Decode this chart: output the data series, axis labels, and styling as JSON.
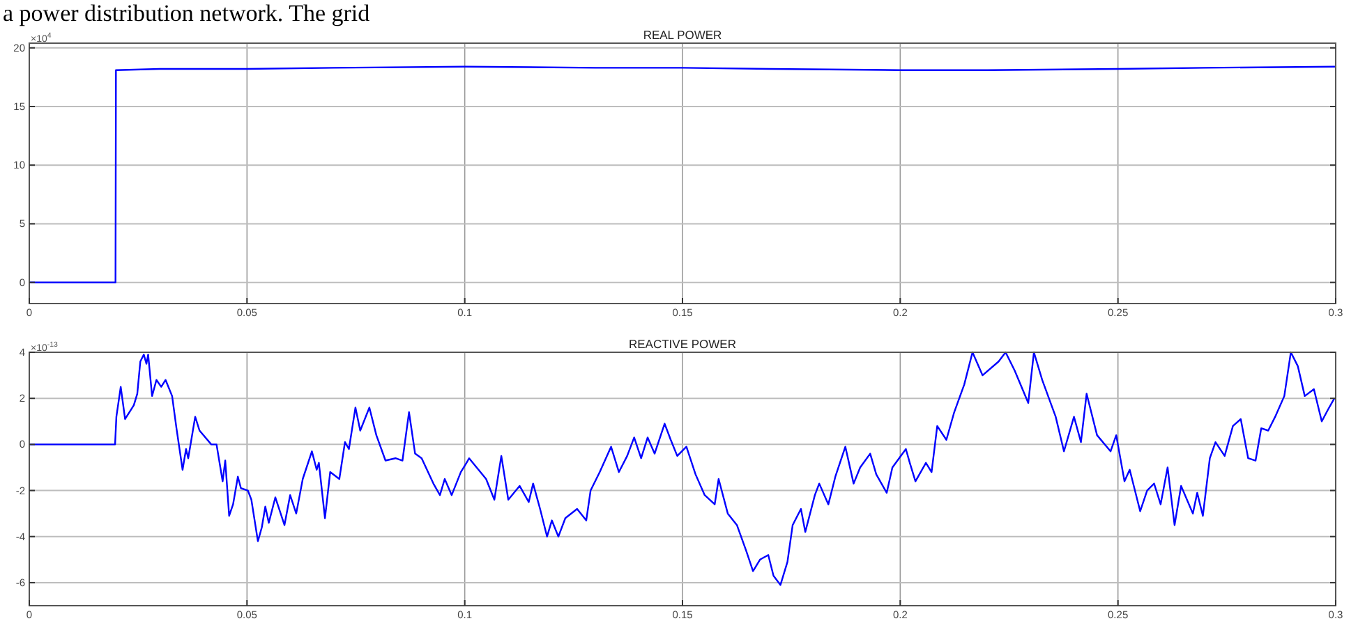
{
  "chart_data": [
    {
      "type": "line",
      "title": "REAL POWER",
      "annotations": [
        "a power distribution network. The grid",
        "×10$^{4}$"
      ],
      "x": [
        0,
        0.0198,
        0.0199,
        0.03,
        0.05,
        0.07,
        0.1,
        0.13,
        0.15,
        0.17,
        0.2,
        0.22,
        0.25,
        0.27,
        0.3
      ],
      "series": [
        {
          "color": "#0000ff",
          "values": [
            0,
            0,
            18.1,
            18.2,
            18.2,
            18.3,
            18.4,
            18.3,
            18.3,
            18.2,
            18.1,
            18.1,
            18.2,
            18.3,
            18.4
          ]
        }
      ],
      "xlim": [
        0,
        0.3
      ],
      "xticks": [
        0,
        0.05,
        0.1,
        0.15,
        0.2,
        0.25,
        0.3
      ],
      "ylim": [
        -1.8,
        20.4
      ],
      "yticks": [
        0,
        5,
        10,
        15,
        20
      ],
      "grid": true,
      "line_style": "solid"
    },
    {
      "type": "line",
      "title": "REACTIVE POWER",
      "annotations": [
        "×10$^{-13}$"
      ],
      "x": [
        0,
        0.0197,
        0.02,
        0.021,
        0.022,
        0.024,
        0.0248,
        0.0255,
        0.0263,
        0.0269,
        0.0273,
        0.0282,
        0.0292,
        0.0303,
        0.0313,
        0.0328,
        0.0338,
        0.0352,
        0.036,
        0.0365,
        0.0381,
        0.0391,
        0.0418,
        0.043,
        0.0444,
        0.045,
        0.0459,
        0.0468,
        0.0479,
        0.0486,
        0.0502,
        0.051,
        0.0525,
        0.0534,
        0.0542,
        0.055,
        0.0565,
        0.0586,
        0.0599,
        0.0613,
        0.0628,
        0.0649,
        0.066,
        0.0665,
        0.0679,
        0.0691,
        0.0712,
        0.0725,
        0.0734,
        0.0749,
        0.076,
        0.0781,
        0.0797,
        0.0818,
        0.0841,
        0.0857,
        0.0872,
        0.0886,
        0.0901,
        0.0928,
        0.0943,
        0.0954,
        0.097,
        0.0991,
        0.1004,
        0.101,
        0.1049,
        0.1068,
        0.1084,
        0.11,
        0.1126,
        0.1147,
        0.1157,
        0.1173,
        0.1189,
        0.12,
        0.1215,
        0.1231,
        0.1258,
        0.1279,
        0.1289,
        0.131,
        0.1336,
        0.1354,
        0.1373,
        0.1389,
        0.1405,
        0.142,
        0.1436,
        0.1459,
        0.1473,
        0.1488,
        0.1509,
        0.153,
        0.1551,
        0.1574,
        0.1583,
        0.1604,
        0.1625,
        0.1646,
        0.1662,
        0.1678,
        0.1697,
        0.1709,
        0.1725,
        0.1741,
        0.1753,
        0.1772,
        0.1782,
        0.1804,
        0.1814,
        0.1835,
        0.1851,
        0.1874,
        0.1893,
        0.1908,
        0.1931,
        0.1945,
        0.1969,
        0.1982,
        0.2013,
        0.2022,
        0.2035,
        0.2059,
        0.2072,
        0.2085,
        0.2106,
        0.2124,
        0.2147,
        0.2166,
        0.2189,
        0.2226,
        0.2242,
        0.2263,
        0.2294,
        0.2307,
        0.2326,
        0.2357,
        0.2376,
        0.2399,
        0.2415,
        0.2428,
        0.2452,
        0.2483,
        0.2496,
        0.2515,
        0.2527,
        0.2551,
        0.2567,
        0.2583,
        0.2598,
        0.2614,
        0.263,
        0.2645,
        0.2672,
        0.2682,
        0.2695,
        0.2711,
        0.2724,
        0.2745,
        0.2764,
        0.2782,
        0.2799,
        0.2816,
        0.2829,
        0.2845,
        0.2861,
        0.2882,
        0.2897,
        0.2913,
        0.2929,
        0.295,
        0.2968,
        0.2982,
        0.2997
      ],
      "series": [
        {
          "color": "#0000ff",
          "values": [
            0,
            0,
            1.2,
            2.5,
            1.1,
            1.7,
            2.2,
            3.6,
            3.9,
            3.5,
            3.9,
            2.1,
            2.8,
            2.5,
            2.8,
            2.1,
            0.7,
            -1.1,
            -0.2,
            -0.6,
            1.2,
            0.6,
            0,
            0,
            -1.6,
            -0.7,
            -3.1,
            -2.6,
            -1.4,
            -1.9,
            -2.0,
            -2.4,
            -4.2,
            -3.6,
            -2.7,
            -3.4,
            -2.3,
            -3.5,
            -2.2,
            -3.0,
            -1.5,
            -0.3,
            -1.1,
            -0.8,
            -3.2,
            -1.2,
            -1.5,
            0.1,
            -0.2,
            1.6,
            0.6,
            1.6,
            0.4,
            -0.7,
            -0.6,
            -0.7,
            1.4,
            -0.4,
            -0.6,
            -1.7,
            -2.2,
            -1.5,
            -2.2,
            -1.2,
            -0.8,
            -0.6,
            -1.5,
            -2.4,
            -0.5,
            -2.4,
            -1.8,
            -2.5,
            -1.7,
            -2.8,
            -4.0,
            -3.3,
            -4.0,
            -3.2,
            -2.8,
            -3.3,
            -2.0,
            -1.2,
            -0.1,
            -1.2,
            -0.5,
            0.3,
            -0.6,
            0.3,
            -0.4,
            0.9,
            0.2,
            -0.5,
            -0.1,
            -1.3,
            -2.2,
            -2.6,
            -1.5,
            -3.0,
            -3.5,
            -4.6,
            -5.5,
            -5.0,
            -4.8,
            -5.7,
            -6.1,
            -5.1,
            -3.5,
            -2.8,
            -3.8,
            -2.2,
            -1.7,
            -2.6,
            -1.4,
            -0.1,
            -1.7,
            -1.0,
            -0.4,
            -1.3,
            -2.1,
            -1.0,
            -0.2,
            -0.8,
            -1.6,
            -0.8,
            -1.2,
            0.8,
            0.2,
            1.4,
            2.6,
            4.0,
            3.0,
            3.6,
            4.0,
            3.2,
            1.8,
            4.0,
            2.8,
            1.2,
            -0.3,
            1.2,
            0.1,
            2.2,
            0.4,
            -0.3,
            0.4,
            -1.6,
            -1.1,
            -2.9,
            -2.0,
            -1.7,
            -2.6,
            -1.0,
            -3.5,
            -1.8,
            -3.0,
            -2.1,
            -3.1,
            -0.6,
            0.1,
            -0.5,
            0.8,
            1.1,
            -0.6,
            -0.7,
            0.7,
            0.6,
            1.2,
            2.1,
            4.0,
            3.4,
            2.1,
            2.4,
            1.0,
            1.5,
            2.0
          ]
        }
      ],
      "xlim": [
        0,
        0.3
      ],
      "xticks": [
        0,
        0.05,
        0.1,
        0.15,
        0.2,
        0.25,
        0.3
      ],
      "ylim": [
        -7,
        4
      ],
      "yticks": [
        -6,
        -4,
        -2,
        0,
        2,
        4
      ],
      "grid": true,
      "line_style": "solid"
    }
  ]
}
